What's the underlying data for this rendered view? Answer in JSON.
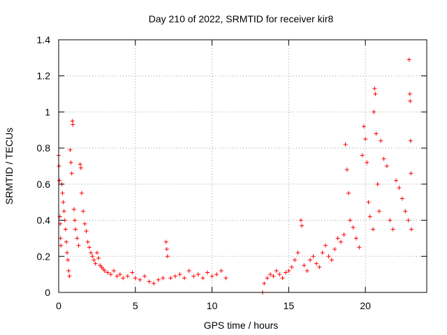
{
  "chart_data": {
    "type": "scatter",
    "title": "Day 210 of 2022, SRMTID for receiver kir8",
    "xlabel": "GPS time / hours",
    "ylabel": "SRMTID / TECUs",
    "xlim": [
      0,
      24
    ],
    "ylim": [
      0,
      1.4
    ],
    "xticks": [
      0,
      5,
      10,
      15,
      20
    ],
    "xtick_labels": [
      "0",
      "5",
      "10",
      "15",
      "20"
    ],
    "yticks": [
      0,
      0.2,
      0.4,
      0.6,
      0.8,
      1.0,
      1.2,
      1.4
    ],
    "ytick_labels": [
      "0",
      "0.2",
      "0.4",
      "0.6",
      "0.8",
      "1",
      "1.2",
      "1.4"
    ],
    "grid": true,
    "marker": "+",
    "colors": {
      "points": "#ff0000",
      "axes": "#000000",
      "grid": "#a0a0a0",
      "background": "#ffffff"
    },
    "series": [
      {
        "name": "SRMTID",
        "points": [
          [
            0.0,
            0.76
          ],
          [
            0.02,
            0.7
          ],
          [
            0.05,
            0.62
          ],
          [
            0.08,
            0.42
          ],
          [
            0.1,
            0.38
          ],
          [
            0.12,
            0.3
          ],
          [
            0.15,
            0.26
          ],
          [
            0.2,
            0.6
          ],
          [
            0.25,
            0.55
          ],
          [
            0.3,
            0.5
          ],
          [
            0.35,
            0.45
          ],
          [
            0.4,
            0.4
          ],
          [
            0.45,
            0.35
          ],
          [
            0.5,
            0.28
          ],
          [
            0.55,
            0.22
          ],
          [
            0.6,
            0.18
          ],
          [
            0.65,
            0.12
          ],
          [
            0.7,
            0.09
          ],
          [
            0.75,
            0.79
          ],
          [
            0.8,
            0.72
          ],
          [
            0.85,
            0.66
          ],
          [
            0.9,
            0.95
          ],
          [
            0.92,
            0.93
          ],
          [
            1.0,
            0.46
          ],
          [
            1.05,
            0.4
          ],
          [
            1.1,
            0.35
          ],
          [
            1.2,
            0.3
          ],
          [
            1.3,
            0.26
          ],
          [
            1.4,
            0.71
          ],
          [
            1.45,
            0.69
          ],
          [
            1.5,
            0.55
          ],
          [
            1.6,
            0.45
          ],
          [
            1.7,
            0.38
          ],
          [
            1.8,
            0.34
          ],
          [
            1.9,
            0.28
          ],
          [
            2.0,
            0.25
          ],
          [
            2.1,
            0.22
          ],
          [
            2.2,
            0.2
          ],
          [
            2.3,
            0.18
          ],
          [
            2.4,
            0.16
          ],
          [
            2.5,
            0.22
          ],
          [
            2.6,
            0.19
          ],
          [
            2.7,
            0.15
          ],
          [
            2.8,
            0.14
          ],
          [
            2.9,
            0.13
          ],
          [
            3.0,
            0.12
          ],
          [
            3.2,
            0.11
          ],
          [
            3.4,
            0.1
          ],
          [
            3.6,
            0.12
          ],
          [
            3.8,
            0.09
          ],
          [
            4.0,
            0.1
          ],
          [
            4.2,
            0.08
          ],
          [
            4.5,
            0.09
          ],
          [
            4.8,
            0.11
          ],
          [
            5.0,
            0.08
          ],
          [
            5.3,
            0.07
          ],
          [
            5.6,
            0.09
          ],
          [
            5.9,
            0.06
          ],
          [
            6.2,
            0.05
          ],
          [
            6.5,
            0.07
          ],
          [
            6.8,
            0.08
          ],
          [
            7.0,
            0.28
          ],
          [
            7.05,
            0.24
          ],
          [
            7.1,
            0.2
          ],
          [
            7.3,
            0.08
          ],
          [
            7.6,
            0.09
          ],
          [
            7.9,
            0.1
          ],
          [
            8.2,
            0.08
          ],
          [
            8.5,
            0.12
          ],
          [
            8.8,
            0.09
          ],
          [
            9.1,
            0.1
          ],
          [
            9.4,
            0.08
          ],
          [
            9.7,
            0.11
          ],
          [
            10.0,
            0.09
          ],
          [
            10.3,
            0.1
          ],
          [
            10.6,
            0.12
          ],
          [
            10.9,
            0.08
          ],
          [
            13.3,
            0.0
          ],
          [
            13.4,
            0.05
          ],
          [
            13.6,
            0.08
          ],
          [
            13.8,
            0.1
          ],
          [
            14.0,
            0.09
          ],
          [
            14.2,
            0.12
          ],
          [
            14.4,
            0.1
          ],
          [
            14.6,
            0.08
          ],
          [
            14.8,
            0.11
          ],
          [
            15.0,
            0.12
          ],
          [
            15.2,
            0.14
          ],
          [
            15.4,
            0.18
          ],
          [
            15.6,
            0.22
          ],
          [
            15.8,
            0.4
          ],
          [
            15.85,
            0.37
          ],
          [
            16.0,
            0.15
          ],
          [
            16.2,
            0.12
          ],
          [
            16.4,
            0.18
          ],
          [
            16.6,
            0.2
          ],
          [
            16.8,
            0.16
          ],
          [
            17.0,
            0.14
          ],
          [
            17.2,
            0.22
          ],
          [
            17.4,
            0.26
          ],
          [
            17.6,
            0.2
          ],
          [
            17.8,
            0.18
          ],
          [
            18.0,
            0.24
          ],
          [
            18.2,
            0.3
          ],
          [
            18.4,
            0.28
          ],
          [
            18.6,
            0.32
          ],
          [
            18.7,
            0.82
          ],
          [
            18.8,
            0.68
          ],
          [
            18.9,
            0.55
          ],
          [
            19.0,
            0.4
          ],
          [
            19.2,
            0.36
          ],
          [
            19.4,
            0.3
          ],
          [
            19.6,
            0.25
          ],
          [
            19.8,
            0.76
          ],
          [
            19.9,
            0.92
          ],
          [
            20.0,
            0.85
          ],
          [
            20.1,
            0.72
          ],
          [
            20.2,
            0.5
          ],
          [
            20.3,
            0.42
          ],
          [
            20.5,
            0.35
          ],
          [
            20.55,
            1.0
          ],
          [
            20.6,
            1.13
          ],
          [
            20.65,
            1.1
          ],
          [
            20.7,
            0.88
          ],
          [
            20.8,
            0.6
          ],
          [
            20.9,
            0.45
          ],
          [
            21.0,
            0.84
          ],
          [
            21.2,
            0.74
          ],
          [
            21.4,
            0.7
          ],
          [
            21.6,
            0.4
          ],
          [
            21.8,
            0.35
          ],
          [
            22.0,
            0.62
          ],
          [
            22.2,
            0.58
          ],
          [
            22.4,
            0.52
          ],
          [
            22.6,
            0.45
          ],
          [
            22.8,
            0.4
          ],
          [
            22.85,
            1.29
          ],
          [
            22.9,
            1.1
          ],
          [
            22.92,
            1.06
          ],
          [
            22.95,
            0.84
          ],
          [
            22.97,
            0.66
          ],
          [
            23.0,
            0.35
          ]
        ]
      }
    ]
  }
}
